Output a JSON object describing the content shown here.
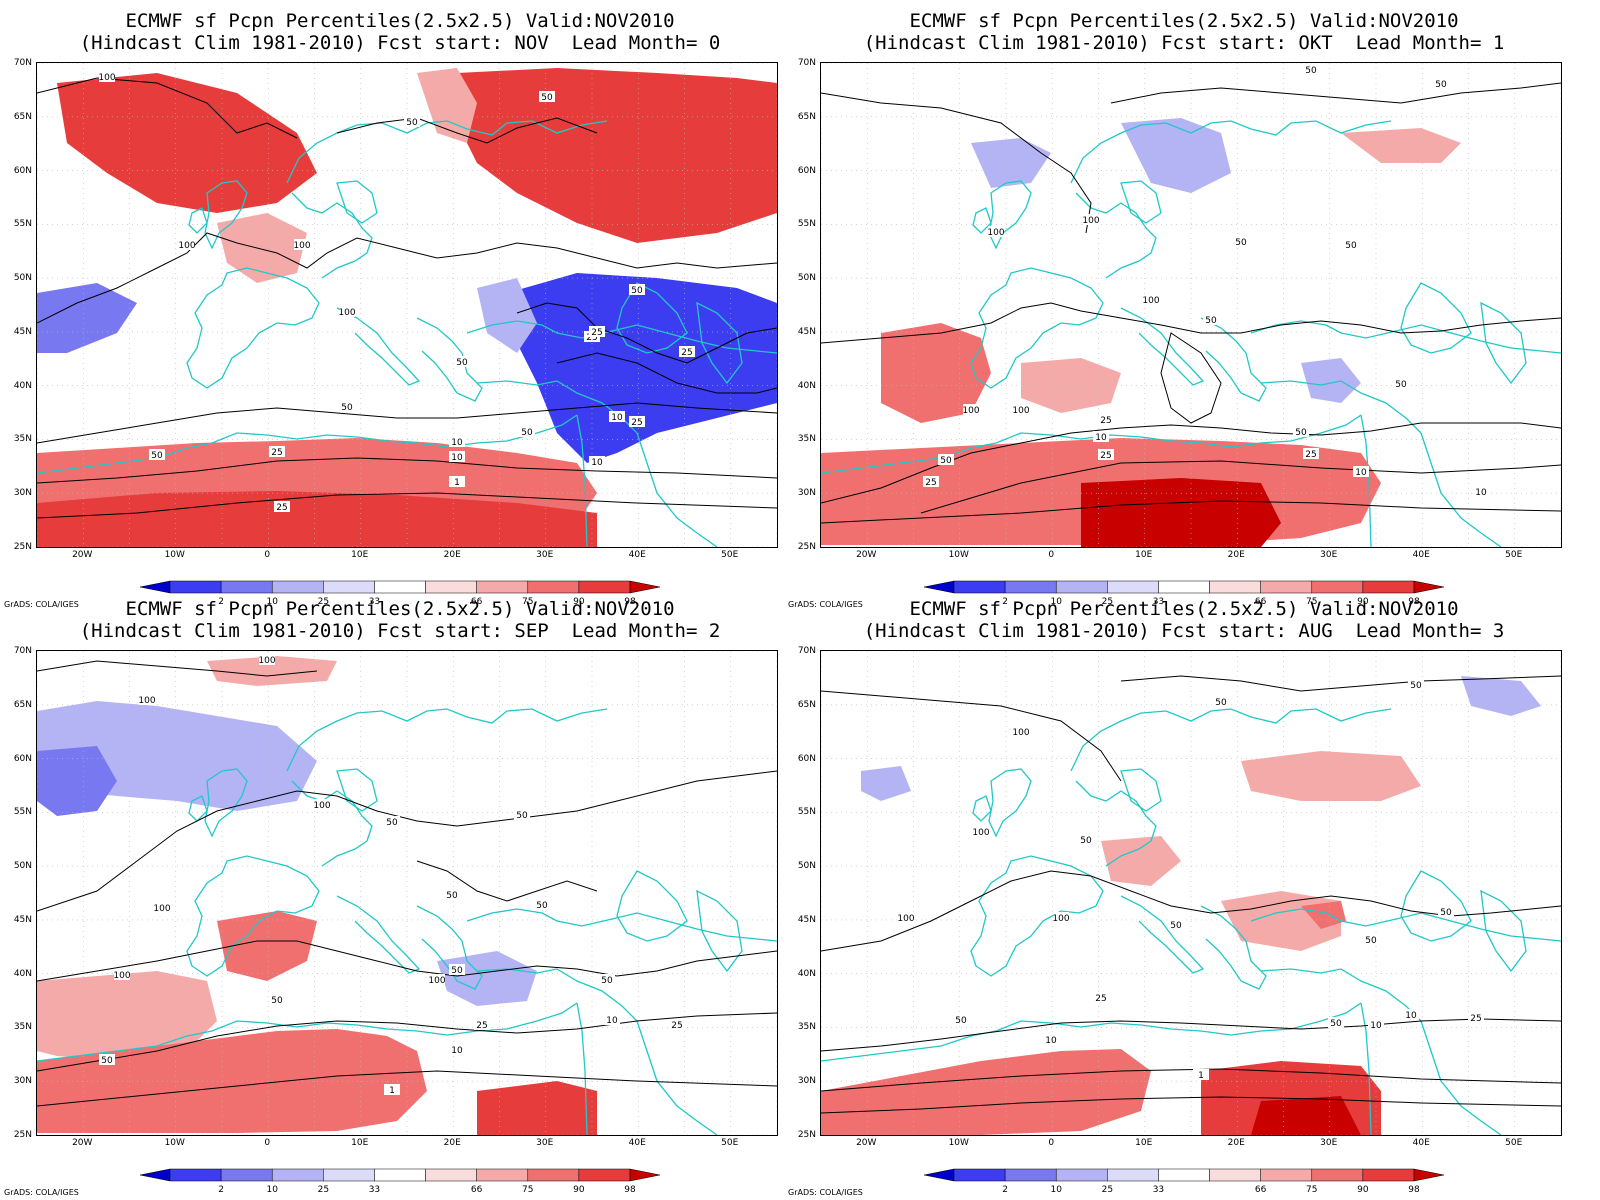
{
  "panels": [
    {
      "title1": "ECMWF sf Pcpn Percentiles(2.5x2.5) Valid:NOV2010",
      "title2": "(Hindcast Clim 1981-2010) Fcst start: NOV  Lead Month= 0"
    },
    {
      "title1": "ECMWF sf Pcpn Percentiles(2.5x2.5) Valid:NOV2010",
      "title2": "(Hindcast Clim 1981-2010) Fcst start: OKT  Lead Month= 1"
    },
    {
      "title1": "ECMWF sf Pcpn Percentiles(2.5x2.5) Valid:NOV2010",
      "title2": "(Hindcast Clim 1981-2010) Fcst start: SEP  Lead Month= 2"
    },
    {
      "title1": "ECMWF sf Pcpn Percentiles(2.5x2.5) Valid:NOV2010",
      "title2": "(Hindcast Clim 1981-2010) Fcst start: AUG  Lead Month= 3"
    }
  ],
  "lat_labels": [
    "70N",
    "65N",
    "60N",
    "55N",
    "50N",
    "45N",
    "40N",
    "35N",
    "30N",
    "25N"
  ],
  "lon_labels": [
    "20W",
    "10W",
    "0",
    "10E",
    "20E",
    "30E",
    "40E",
    "50E"
  ],
  "colorbar": {
    "labels": [
      "2",
      "10",
      "25",
      "33",
      "66",
      "75",
      "90",
      "98"
    ],
    "colors": [
      "#0000c8",
      "#3c3cf0",
      "#7878f0",
      "#b4b4f5",
      "#dcdcfa",
      "#ffffff",
      "#fadcdc",
      "#f5aaaa",
      "#f07070",
      "#e63c3c",
      "#c80000"
    ]
  },
  "grads_label": "GrADS: COLA/IGES",
  "map_colors": {
    "coast": "#20c8c8",
    "contour": "#000000",
    "grid": "#bbbbbb"
  },
  "contour_labels": [
    [
      "100",
      "50",
      "50",
      "100",
      "100",
      "50",
      "25",
      "100",
      "25",
      "25",
      "50",
      "50",
      "25",
      "10",
      "10",
      "25",
      "10",
      "1",
      "50",
      "25",
      "50",
      "10"
    ],
    [
      "50",
      "50",
      "100",
      "100",
      "50",
      "50",
      "100",
      "50",
      "100",
      "50",
      "100",
      "25",
      "10",
      "50",
      "25",
      "50",
      "25",
      "10",
      "25",
      "10"
    ],
    [
      "100",
      "100",
      "100",
      "50",
      "50",
      "100",
      "50",
      "50",
      "100",
      "50",
      "50",
      "100",
      "25",
      "10",
      "50",
      "10",
      "25",
      "1",
      "50"
    ],
    [
      "50",
      "50",
      "100",
      "100",
      "50",
      "100",
      "100",
      "50",
      "50",
      "50",
      "25",
      "50",
      "10",
      "10",
      "50",
      "1",
      "25",
      "10"
    ]
  ]
}
